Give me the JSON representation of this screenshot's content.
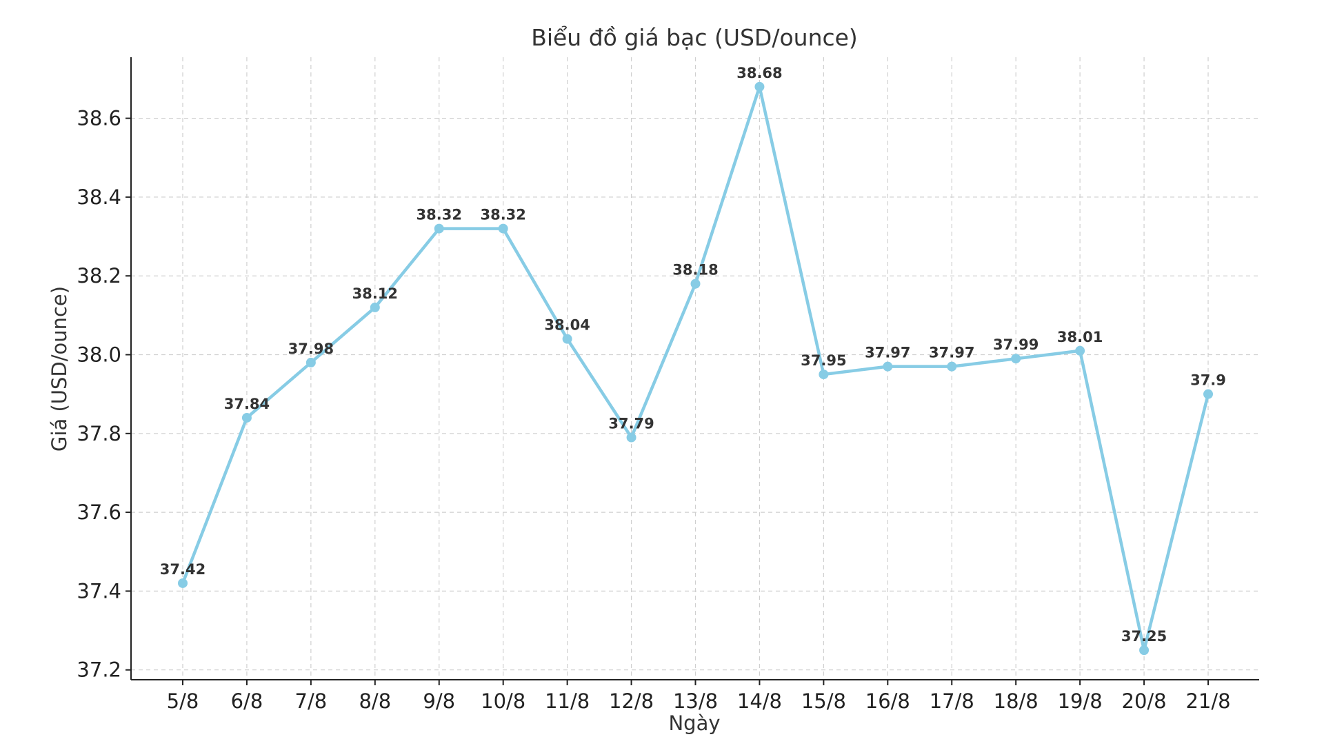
{
  "chart_data": {
    "type": "line",
    "title": "Biểu đồ giá bạc (USD/ounce)",
    "xlabel": "Ngày",
    "ylabel": "Giá (USD/ounce)",
    "categories": [
      "5/8",
      "6/8",
      "7/8",
      "8/8",
      "9/8",
      "10/8",
      "11/8",
      "12/8",
      "13/8",
      "14/8",
      "15/8",
      "16/8",
      "17/8",
      "18/8",
      "19/8",
      "20/8",
      "21/8"
    ],
    "series": [
      {
        "values": [
          37.42,
          37.84,
          37.98,
          38.12,
          38.32,
          38.32,
          38.04,
          37.79,
          38.18,
          38.68,
          37.95,
          37.97,
          37.97,
          37.99,
          38.01,
          37.25,
          37.9
        ],
        "labels": [
          "37.42",
          "37.84",
          "37.98",
          "38.12",
          "38.32",
          "38.32",
          "38.04",
          "37.79",
          "38.18",
          "38.68",
          "37.95",
          "37.97",
          "37.97",
          "37.99",
          "38.01",
          "37.25",
          "37.9"
        ],
        "color": "#87cce5"
      }
    ],
    "yticks": [
      37.2,
      37.4,
      37.6,
      37.8,
      38.0,
      38.2,
      38.4,
      38.6
    ],
    "ytick_labels": [
      "37.2",
      "37.4",
      "37.6",
      "37.8",
      "38.0",
      "38.2",
      "38.4",
      "38.6"
    ],
    "ylim": [
      37.175,
      38.755
    ],
    "grid": true,
    "markers": true,
    "data_labels": true
  }
}
